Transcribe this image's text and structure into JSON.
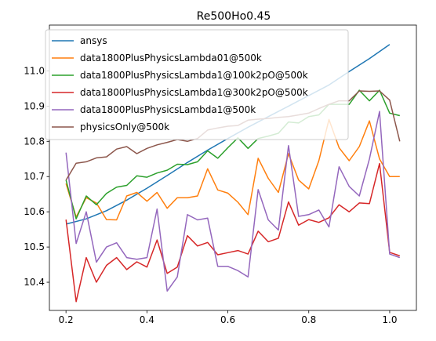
{
  "chart_data": {
    "type": "line",
    "title": "Re500Ho0.45",
    "xlabel": "",
    "ylabel": "",
    "xlim": [
      0.159,
      1.066
    ],
    "ylim": [
      10.32,
      11.13
    ],
    "xticks": [
      "0.2",
      "0.4",
      "0.6",
      "0.8",
      "1.0"
    ],
    "xtick_values": [
      0.2,
      0.4,
      0.6,
      0.8,
      1.0
    ],
    "yticks": [
      "10.4",
      "10.5",
      "10.6",
      "10.7",
      "10.8",
      "10.9",
      "11.0"
    ],
    "ytick_values": [
      10.4,
      10.5,
      10.6,
      10.7,
      10.8,
      10.9,
      11.0
    ],
    "grid": false,
    "legend_position": "upper left",
    "x": [
      0.2,
      0.225,
      0.25,
      0.275,
      0.3,
      0.325,
      0.35,
      0.375,
      0.4,
      0.425,
      0.45,
      0.475,
      0.5,
      0.525,
      0.55,
      0.575,
      0.6,
      0.625,
      0.65,
      0.675,
      0.7,
      0.725,
      0.75,
      0.775,
      0.8,
      0.825,
      0.85,
      0.875,
      0.9,
      0.925,
      0.95,
      0.975,
      1.0,
      1.025
    ],
    "series": [
      {
        "name": "ansys",
        "color": "#1f77b4",
        "x": [
          0.2,
          0.25,
          0.3,
          0.35,
          0.4,
          0.45,
          0.5,
          0.55,
          0.6,
          0.65,
          0.7,
          0.75,
          0.8,
          0.85,
          0.9,
          0.95,
          1.0
        ],
        "values": [
          10.565,
          10.58,
          10.603,
          10.633,
          10.667,
          10.703,
          10.74,
          10.775,
          10.808,
          10.84,
          10.87,
          10.9,
          10.93,
          10.96,
          10.998,
          11.035,
          11.075
        ]
      },
      {
        "name": "data1800PlusPhysicsLambda01@500k",
        "color": "#ff7f0e",
        "values": [
          10.68,
          10.585,
          10.64,
          10.625,
          10.578,
          10.577,
          10.645,
          10.655,
          10.63,
          10.655,
          10.61,
          10.64,
          10.64,
          10.645,
          10.722,
          10.662,
          10.653,
          10.627,
          10.592,
          10.752,
          10.695,
          10.655,
          10.765,
          10.69,
          10.665,
          10.745,
          10.862,
          10.782,
          10.745,
          10.785,
          10.858,
          10.75,
          10.7,
          10.7
        ]
      },
      {
        "name": "data1800PlusPhysicsLambda1@100k2pO@500k",
        "color": "#2ca02c",
        "values": [
          10.69,
          10.58,
          10.645,
          10.62,
          10.652,
          10.67,
          10.675,
          10.702,
          10.698,
          10.71,
          10.718,
          10.735,
          10.734,
          10.742,
          10.773,
          10.752,
          10.782,
          10.81,
          10.78,
          10.808,
          10.815,
          10.823,
          10.855,
          10.852,
          10.87,
          10.875,
          10.905,
          10.905,
          10.905,
          10.945,
          10.915,
          10.945,
          10.88,
          10.873
        ]
      },
      {
        "name": "data1800PlusPhysicsLambda1@300k2pO@500k",
        "color": "#d62728",
        "values": [
          10.578,
          10.345,
          10.47,
          10.4,
          10.448,
          10.47,
          10.436,
          10.458,
          10.443,
          10.52,
          10.425,
          10.443,
          10.532,
          10.503,
          10.513,
          10.478,
          10.484,
          10.49,
          10.48,
          10.545,
          10.515,
          10.525,
          10.628,
          10.562,
          10.578,
          10.57,
          10.583,
          10.62,
          10.6,
          10.625,
          10.623,
          10.737,
          10.485,
          10.475
        ]
      },
      {
        "name": "data1800PlusPhysicsLambda1@500k",
        "color": "#9467bd",
        "values": [
          10.768,
          10.51,
          10.6,
          10.457,
          10.5,
          10.512,
          10.47,
          10.465,
          10.47,
          10.608,
          10.375,
          10.415,
          10.592,
          10.577,
          10.582,
          10.445,
          10.445,
          10.433,
          10.415,
          10.663,
          10.577,
          10.548,
          10.788,
          10.587,
          10.592,
          10.605,
          10.557,
          10.728,
          10.672,
          10.645,
          10.75,
          10.885,
          10.48,
          10.47
        ]
      },
      {
        "name": "physicsOnly@500k",
        "color": "#8c564b",
        "values": [
          10.69,
          10.738,
          10.742,
          10.753,
          10.756,
          10.778,
          10.785,
          10.765,
          10.78,
          10.79,
          10.797,
          10.805,
          10.8,
          10.808,
          10.832,
          10.838,
          10.843,
          10.845,
          10.86,
          10.863,
          10.865,
          10.868,
          10.87,
          10.875,
          10.88,
          10.893,
          10.905,
          10.915,
          10.915,
          10.943,
          10.942,
          10.943,
          10.917,
          10.8
        ]
      }
    ]
  }
}
